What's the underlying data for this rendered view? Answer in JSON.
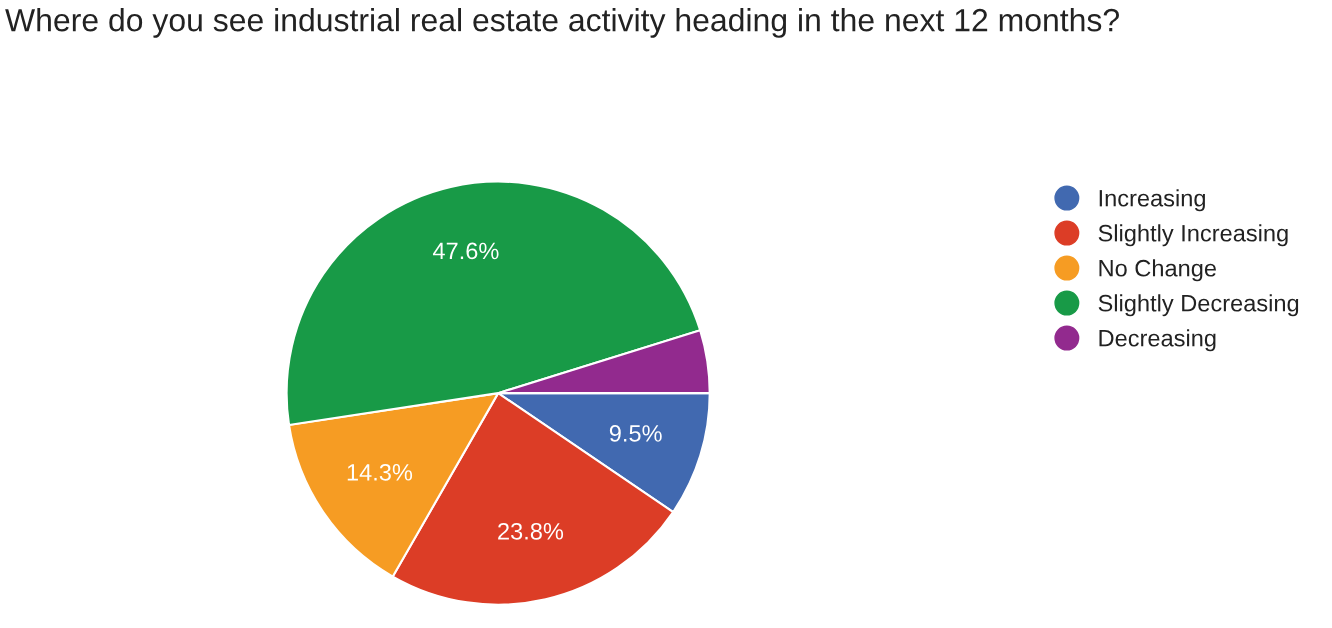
{
  "chart_data": {
    "type": "pie",
    "title": "Where do you see industrial real estate activity heading in the next 12 months?",
    "categories": [
      "Increasing",
      "Slightly Increasing",
      "No Change",
      "Slightly Decreasing",
      "Decreasing"
    ],
    "values": [
      9.5,
      23.8,
      14.3,
      47.6,
      4.8
    ],
    "value_labels": [
      "9.5%",
      "23.8%",
      "14.3%",
      "47.6%",
      null
    ],
    "colors": [
      "#4169b0",
      "#dc3d26",
      "#f69c23",
      "#189a47",
      "#922a8e"
    ],
    "legend": "right"
  }
}
